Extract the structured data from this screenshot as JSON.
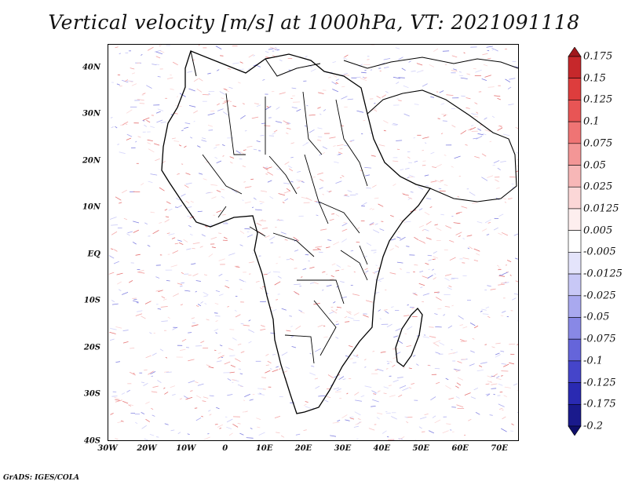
{
  "title": "Vertical velocity [m/s] at 1000hPa, VT: 2021091118",
  "footer": "GrADS: IGES/COLA",
  "map": {
    "lon_range": [
      -30,
      75
    ],
    "lat_range": [
      -40,
      45
    ],
    "lat_ticks": [
      {
        "value": 40,
        "label": "40N"
      },
      {
        "value": 30,
        "label": "30N"
      },
      {
        "value": 20,
        "label": "20N"
      },
      {
        "value": 10,
        "label": "10N"
      },
      {
        "value": 0,
        "label": "EQ"
      },
      {
        "value": -10,
        "label": "10S"
      },
      {
        "value": -20,
        "label": "20S"
      },
      {
        "value": -30,
        "label": "30S"
      },
      {
        "value": -40,
        "label": "40S"
      }
    ],
    "lon_ticks": [
      {
        "value": -30,
        "label": "30W"
      },
      {
        "value": -20,
        "label": "20W"
      },
      {
        "value": -10,
        "label": "10W"
      },
      {
        "value": 0,
        "label": "0"
      },
      {
        "value": 10,
        "label": "10E"
      },
      {
        "value": 20,
        "label": "20E"
      },
      {
        "value": 30,
        "label": "30E"
      },
      {
        "value": 40,
        "label": "40E"
      },
      {
        "value": 50,
        "label": "50E"
      },
      {
        "value": 60,
        "label": "60E"
      },
      {
        "value": 70,
        "label": "70E"
      }
    ]
  },
  "colorbar": {
    "labels": [
      "0.175",
      "0.15",
      "0.125",
      "0.1",
      "0.075",
      "0.05",
      "0.025",
      "0.0125",
      "0.005",
      "-0.005",
      "-0.0125",
      "-0.025",
      "-0.05",
      "-0.075",
      "-0.1",
      "-0.125",
      "-0.175",
      "-0.2"
    ],
    "colors": [
      "#a0191c",
      "#c6282b",
      "#dd3d3d",
      "#e85555",
      "#ef7474",
      "#f39696",
      "#f7b7b7",
      "#fbd7d7",
      "#fdeeee",
      "#ffffff",
      "#e4e4fb",
      "#c8c8f6",
      "#a9a9ef",
      "#8888e6",
      "#6565da",
      "#4545ca",
      "#2a2ab2",
      "#1a1a8c",
      "#0e0e6a"
    ]
  }
}
